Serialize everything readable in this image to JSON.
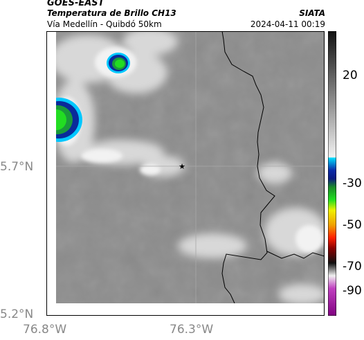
{
  "header": {
    "satellite": "GOES-EAST",
    "product": "Temperatura de Brillo CH13",
    "region": "Vía Medellín - Quibdó 50km",
    "source": "SIATA",
    "timestamp": "2024-04-11 00:19"
  },
  "map": {
    "lon_ticks": [
      "76.8°W",
      "76.3°W"
    ],
    "lat_ticks": [
      "5.7°N",
      "5.2°N"
    ],
    "marker_icon": "star-marker-icon",
    "colors": {
      "background_gray": "#8a8a8a",
      "cloud_white": "#e8e8e8",
      "border_line": "#000000"
    }
  },
  "colorbar": {
    "tick_labels": [
      "20",
      "-30",
      "-50",
      "-70",
      "-90"
    ],
    "range": [
      -95,
      40
    ],
    "stops": [
      {
        "v": 40,
        "c": "#111111"
      },
      {
        "v": -20,
        "c": "#f2f2f2"
      },
      {
        "v": -20,
        "c": "#00e0ff"
      },
      {
        "v": -26,
        "c": "#0a2aa8"
      },
      {
        "v": -30,
        "c": "#0a1a80"
      },
      {
        "v": -34,
        "c": "#1a8a2a"
      },
      {
        "v": -40,
        "c": "#20e020"
      },
      {
        "v": -45,
        "c": "#f0f000"
      },
      {
        "v": -52,
        "c": "#f0a000"
      },
      {
        "v": -58,
        "c": "#ff2000"
      },
      {
        "v": -63,
        "c": "#8a0000"
      },
      {
        "v": -70,
        "c": "#101010"
      },
      {
        "v": -76,
        "c": "#f0f0f0"
      },
      {
        "v": -82,
        "c": "#c040c0"
      },
      {
        "v": -95,
        "c": "#800080"
      }
    ]
  }
}
